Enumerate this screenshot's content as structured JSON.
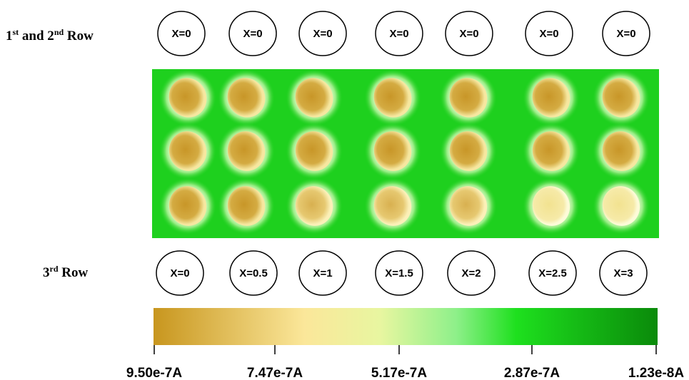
{
  "row_labels": {
    "top": [
      "1",
      "st",
      " and 2",
      "nd",
      " Row"
    ],
    "bottom": [
      "3",
      "rd",
      " Row"
    ]
  },
  "top_circles": [
    "X=0",
    "X=0",
    "X=0",
    "X=0",
    "X=0",
    "X=0",
    "X=0"
  ],
  "bottom_circles": [
    "X=0",
    "X=0.5",
    "X=1",
    "X=1.5",
    "X=2",
    "X=2.5",
    "X=3"
  ],
  "colorbar": {
    "ticks": [
      "9.50e-7A",
      "7.47e-7A",
      "5.17e-7A",
      "2.87e-7A",
      "1.23e-8A"
    ]
  }
}
